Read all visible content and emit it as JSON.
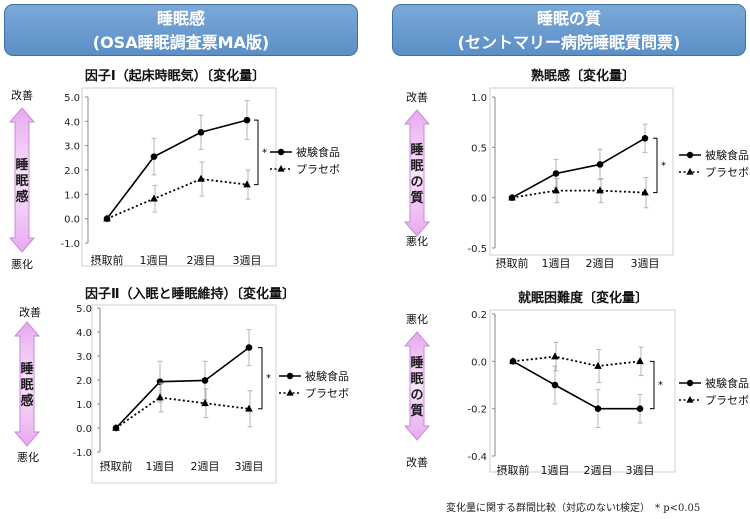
{
  "panels": {
    "left_title": [
      "睡眠感",
      "(OSA睡眠調査票MA版)"
    ],
    "right_title": [
      "睡眠の質",
      "(セントマリー病院睡眠質問票)"
    ]
  },
  "footnote": "変化量に関する群間比較（対応のないt検定）　* p<0.05",
  "chart_data": [
    {
      "type": "line",
      "title": "因子Ⅰ（起床時眠気）〔変化量〕",
      "categories": [
        "摂取前",
        "1週目",
        "2週目",
        "3週目"
      ],
      "yticks": [
        "5.0",
        "4.0",
        "3.0",
        "2.0",
        "1.0",
        "0.0",
        "-1.0"
      ],
      "ylim": [
        -1,
        5
      ],
      "series": [
        {
          "name": "被験食品",
          "values": [
            0,
            2.55,
            3.55,
            4.05
          ],
          "errors": [
            0,
            0.75,
            0.7,
            0.8
          ],
          "style": "solid",
          "marker": "circle"
        },
        {
          "name": "プラセボ",
          "values": [
            0,
            0.82,
            1.63,
            1.4
          ],
          "errors": [
            0,
            0.55,
            0.7,
            0.6
          ],
          "style": "dotted",
          "marker": "triangle"
        }
      ],
      "significance": "*",
      "arrow": {
        "top": "改善",
        "bottom": "悪化",
        "label": "睡眠感"
      }
    },
    {
      "type": "line",
      "title": "因子Ⅱ（入眠と睡眠維持）〔変化量〕",
      "categories": [
        "摂取前",
        "1週目",
        "2週目",
        "3週目"
      ],
      "yticks": [
        "5.0",
        "4.0",
        "3.0",
        "2.0",
        "1.0",
        "0.0",
        "-1.0"
      ],
      "ylim": [
        -1,
        5
      ],
      "series": [
        {
          "name": "被験食品",
          "values": [
            0,
            1.93,
            1.98,
            3.35
          ],
          "errors": [
            0,
            0.85,
            0.8,
            0.75
          ],
          "style": "solid",
          "marker": "circle"
        },
        {
          "name": "プラセボ",
          "values": [
            0,
            1.27,
            1.03,
            0.8
          ],
          "errors": [
            0,
            0.6,
            0.6,
            0.75
          ],
          "style": "dotted",
          "marker": "triangle"
        }
      ],
      "significance": "*",
      "arrow": {
        "top": "改善",
        "bottom": "悪化",
        "label": "睡眠感"
      }
    },
    {
      "type": "line",
      "title": "熟眠感〔変化量〕",
      "categories": [
        "摂取前",
        "1週目",
        "2週目",
        "3週目"
      ],
      "yticks": [
        "1.0",
        "0.5",
        "0.0",
        "-0.5"
      ],
      "ylim": [
        -0.5,
        1
      ],
      "series": [
        {
          "name": "被験食品",
          "values": [
            0,
            0.24,
            0.33,
            0.59
          ],
          "errors": [
            0,
            0.14,
            0.15,
            0.14
          ],
          "style": "solid",
          "marker": "circle"
        },
        {
          "name": "プラセボ",
          "values": [
            0,
            0.07,
            0.07,
            0.05
          ],
          "errors": [
            0,
            0.12,
            0.12,
            0.15
          ],
          "style": "dotted",
          "marker": "triangle"
        }
      ],
      "significance": "*",
      "arrow": {
        "top": "改善",
        "bottom": "悪化",
        "label": "睡眠の質"
      }
    },
    {
      "type": "line",
      "title": "就眠困難度〔変化量〕",
      "categories": [
        "摂取前",
        "1週目",
        "2週目",
        "3週目"
      ],
      "yticks": [
        "0.2",
        "0.0",
        "-0.2",
        "-0.4"
      ],
      "ylim": [
        -0.4,
        0.2
      ],
      "series": [
        {
          "name": "被験食品",
          "values": [
            0,
            -0.1,
            -0.2,
            -0.2
          ],
          "errors": [
            0,
            0.08,
            0.08,
            0.06
          ],
          "style": "solid",
          "marker": "circle"
        },
        {
          "name": "プラセボ",
          "values": [
            0,
            0.02,
            -0.02,
            0
          ],
          "errors": [
            0,
            0.06,
            0.07,
            0.06
          ],
          "style": "dotted",
          "marker": "triangle"
        }
      ],
      "significance": "*",
      "arrow": {
        "top": "悪化",
        "bottom": "改善",
        "label": "睡眠の質"
      }
    }
  ]
}
